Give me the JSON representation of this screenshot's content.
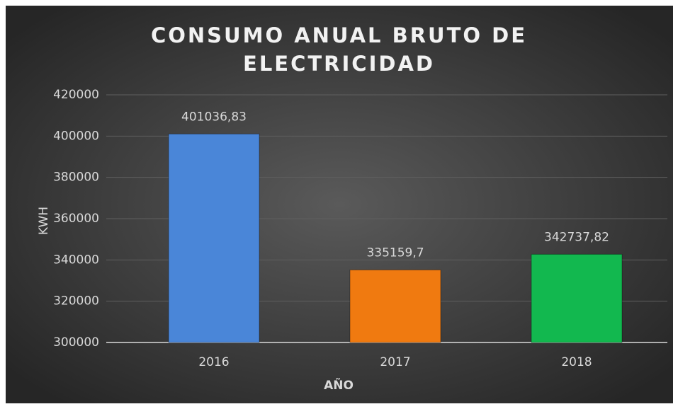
{
  "chart_data": {
    "type": "bar",
    "title": "CONSUMO ANUAL BRUTO DE ELECTRICIDAD",
    "x_label": "AÑO",
    "y_label": "KWH",
    "categories": [
      "2016",
      "2017",
      "2018"
    ],
    "values": [
      401036.83,
      335159.7,
      342737.82
    ],
    "value_labels": [
      "401036,83",
      "335159,7",
      "342737,82"
    ],
    "colors": [
      "#4a86d8",
      "#f07a10",
      "#12b84f"
    ],
    "ylim": [
      300000,
      420000
    ],
    "yticks": [
      300000,
      320000,
      340000,
      360000,
      380000,
      400000,
      420000
    ],
    "grid": true
  }
}
